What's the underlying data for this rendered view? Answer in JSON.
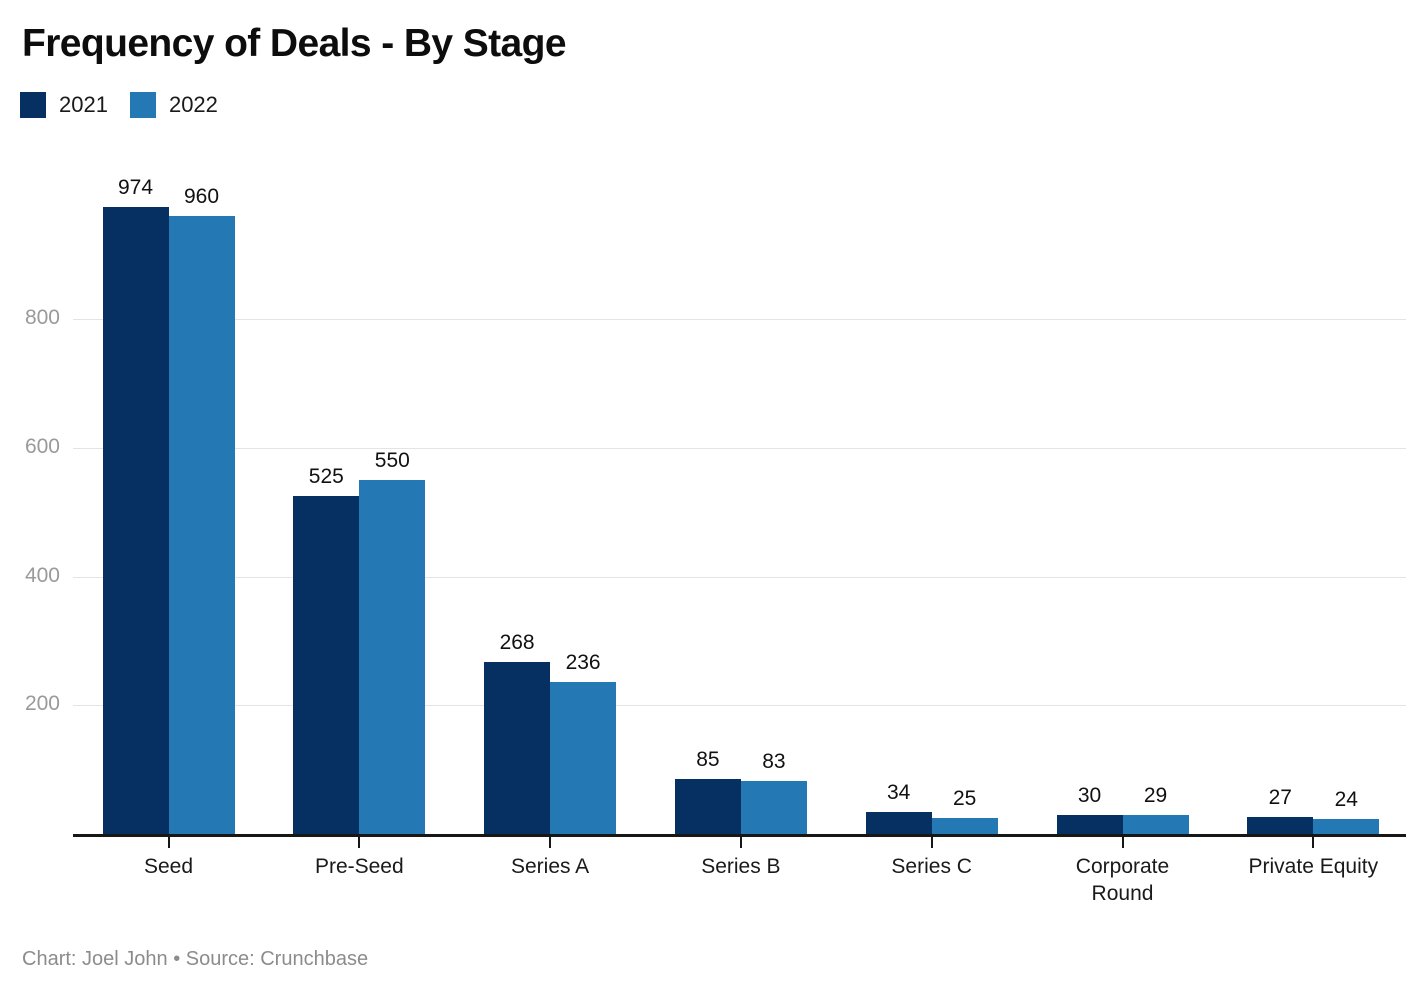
{
  "header": {
    "title": "Frequency of Deals - By Stage"
  },
  "legend": {
    "items": [
      {
        "label": "2021",
        "color": "#053061"
      },
      {
        "label": "2022",
        "color": "#2478b4"
      }
    ]
  },
  "footer": {
    "text": "Chart: Joel John • Source: Crunchbase"
  },
  "colors": {
    "series_2021": "#053061",
    "series_2022": "#2478b4",
    "axis_line": "#171717",
    "gridline": "#e4e4e4",
    "ytick_text": "#9a9a9a",
    "footer_text": "#8c8c8c"
  },
  "chart_data": {
    "type": "bar",
    "title": "Frequency of Deals - By Stage",
    "categories": [
      "Seed",
      "Pre-Seed",
      "Series A",
      "Series B",
      "Series C",
      "Corporate Round",
      "Private Equity"
    ],
    "series": [
      {
        "name": "2021",
        "color": "#053061",
        "values": [
          974,
          525,
          268,
          85,
          34,
          30,
          27
        ]
      },
      {
        "name": "2022",
        "color": "#2478b4",
        "values": [
          960,
          550,
          236,
          83,
          25,
          29,
          24
        ]
      }
    ],
    "xlabel": "",
    "ylabel": "",
    "ylim": [
      0,
      1000
    ],
    "yticks": [
      200,
      400,
      600,
      800
    ],
    "grid": true,
    "legend_position": "top-left",
    "value_labels": true,
    "source_note": "Chart: Joel John • Source: Crunchbase"
  }
}
